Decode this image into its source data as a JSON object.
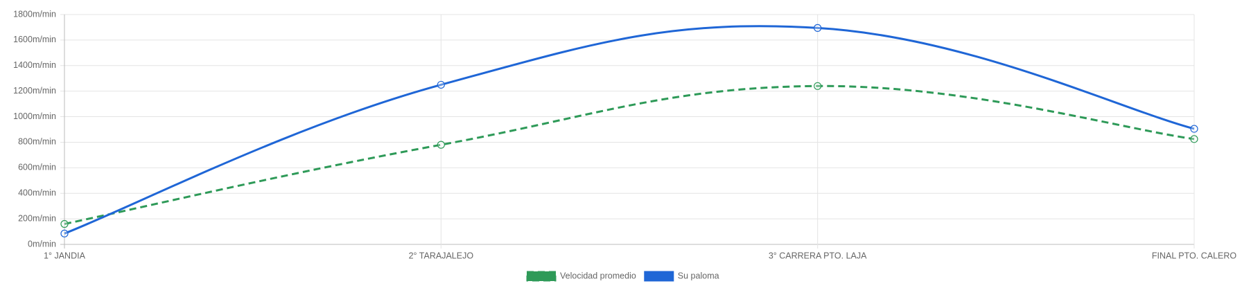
{
  "chart_data": {
    "type": "line",
    "categories": [
      "1° JANDIA",
      "2° TARAJALEJO",
      "3° CARRERA PTO. LAJA",
      "FINAL PTO. CALERO"
    ],
    "series": [
      {
        "name": "Velocidad promedio",
        "color": "#2e9a58",
        "dashed": true,
        "values": [
          160,
          780,
          1240,
          825
        ]
      },
      {
        "name": "Su paloma",
        "color": "#1f66d6",
        "dashed": false,
        "values": [
          85,
          1250,
          1695,
          905
        ]
      }
    ],
    "ylim": [
      0,
      1800
    ],
    "yticks": [
      {
        "value": 0,
        "label": "0m/min"
      },
      {
        "value": 200,
        "label": "200m/min"
      },
      {
        "value": 400,
        "label": "400m/min"
      },
      {
        "value": 600,
        "label": "600m/min"
      },
      {
        "value": 800,
        "label": "800m/min"
      },
      {
        "value": 1000,
        "label": "1000m/min"
      },
      {
        "value": 1200,
        "label": "1200m/min"
      },
      {
        "value": 1400,
        "label": "1400m/min"
      },
      {
        "value": 1600,
        "label": "1600m/min"
      },
      {
        "value": 1800,
        "label": "1800m/min"
      }
    ],
    "grid": true,
    "legend": "bottom"
  }
}
